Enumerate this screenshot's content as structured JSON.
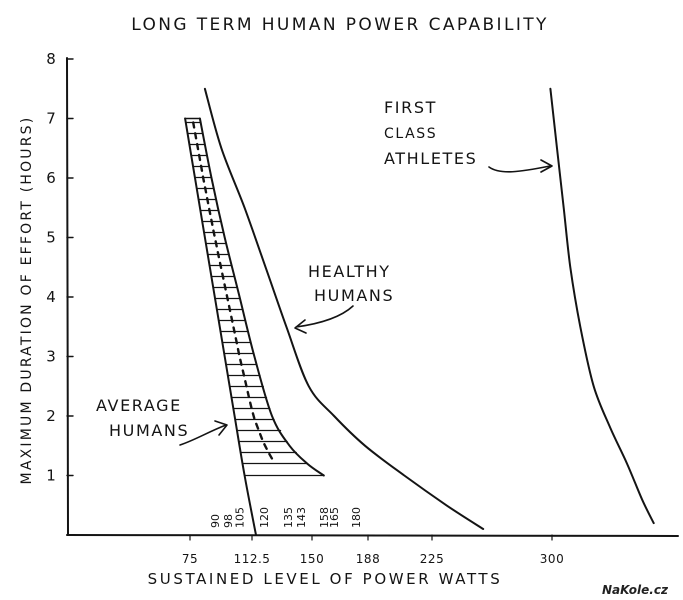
{
  "chart_data": {
    "type": "line",
    "title": "LONG TERM HUMAN POWER CAPABILITY",
    "xlabel": "SUSTAINED  LEVEL  OF  POWER  WATTS",
    "ylabel": "MAXIMUM  DURATION  OF  EFFORT  (HOURS)",
    "ylim": [
      0,
      8
    ],
    "y_ticks": [
      "1",
      "2",
      "3",
      "4",
      "5",
      "6",
      "7",
      "8"
    ],
    "x_ticks": [
      "75",
      "112.5",
      "150",
      "188",
      "225",
      "300"
    ],
    "x_ticks_rotated": [
      "90",
      "98",
      "105",
      "120",
      "135",
      "143",
      "158",
      "165",
      "180"
    ],
    "grid": false,
    "series": [
      {
        "name": "AVERAGE HUMANS",
        "band_left": {
          "x": [
            72,
            78,
            84,
            90,
            96,
            102,
            108,
            115
          ],
          "y": [
            7.0,
            6.0,
            5.0,
            4.0,
            3.0,
            2.0,
            1.0,
            0.0
          ]
        },
        "band_right": {
          "x": [
            81,
            88,
            96,
            105,
            114,
            125,
            136,
            147,
            158
          ],
          "y": [
            7.0,
            6.0,
            5.0,
            4.0,
            3.0,
            2.0,
            1.5,
            1.2,
            1.0
          ]
        }
      },
      {
        "name": "HEALTHY HUMANS",
        "x": [
          84,
          94,
          108,
          121,
          134,
          148,
          165,
          186,
          209,
          234,
          257
        ],
        "y": [
          7.5,
          6.5,
          5.5,
          4.5,
          3.5,
          2.5,
          2.0,
          1.5,
          1.0,
          0.5,
          0.1
        ]
      },
      {
        "name": "FIRST CLASS ATHLETES",
        "x": [
          299,
          303,
          307,
          311,
          317,
          325,
          335,
          345,
          354,
          361
        ],
        "y": [
          7.5,
          6.5,
          5.5,
          4.5,
          3.5,
          2.5,
          1.8,
          1.2,
          0.6,
          0.2
        ]
      }
    ],
    "annotations": {
      "athletes": [
        "FIRST",
        "CLASS",
        "ATHLETES"
      ],
      "healthy": [
        "HEALTHY",
        "HUMANS"
      ],
      "average": [
        "AVERAGE",
        "HUMANS"
      ]
    }
  },
  "watermark": "NaKole.cz"
}
